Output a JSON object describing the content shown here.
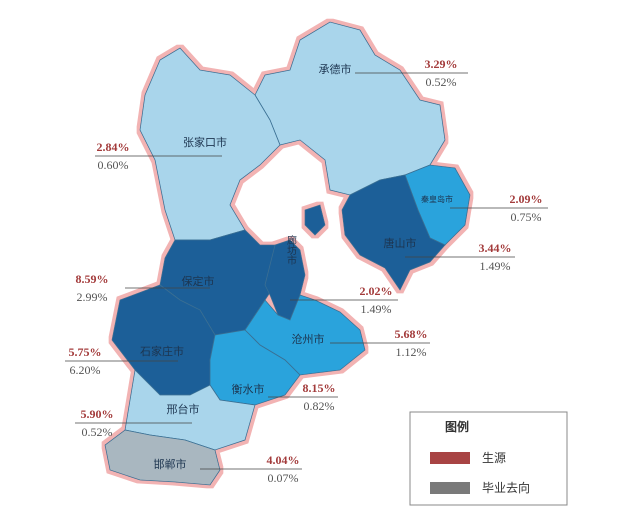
{
  "regions": [
    {
      "name": "承德市",
      "source": "3.29%",
      "employment": "0.52%"
    },
    {
      "name": "张家口市",
      "source": "2.84%",
      "employment": "0.60%"
    },
    {
      "name": "秦皇岛市",
      "source": "2.09%",
      "employment": "0.75%"
    },
    {
      "name": "唐山市",
      "source": "3.44%",
      "employment": "1.49%"
    },
    {
      "name": "保定市",
      "source": "8.59%",
      "employment": "2.99%"
    },
    {
      "name": "廊坊市",
      "source": "2.02%",
      "employment": "1.49%"
    },
    {
      "name": "沧州市",
      "source": "5.68%",
      "employment": "1.12%"
    },
    {
      "name": "石家庄市",
      "source": "5.75%",
      "employment": "6.20%"
    },
    {
      "name": "衡水市",
      "source": "8.15%",
      "employment": "0.82%"
    },
    {
      "name": "邢台市",
      "source": "5.90%",
      "employment": "0.52%"
    },
    {
      "name": "邯郸市",
      "source": "4.04%",
      "employment": "0.07%"
    }
  ],
  "legend": {
    "title": "图例",
    "items": [
      {
        "label": "生源",
        "color": "#a84444"
      },
      {
        "label": "毕业去向",
        "color": "#7a7a7a"
      }
    ]
  }
}
